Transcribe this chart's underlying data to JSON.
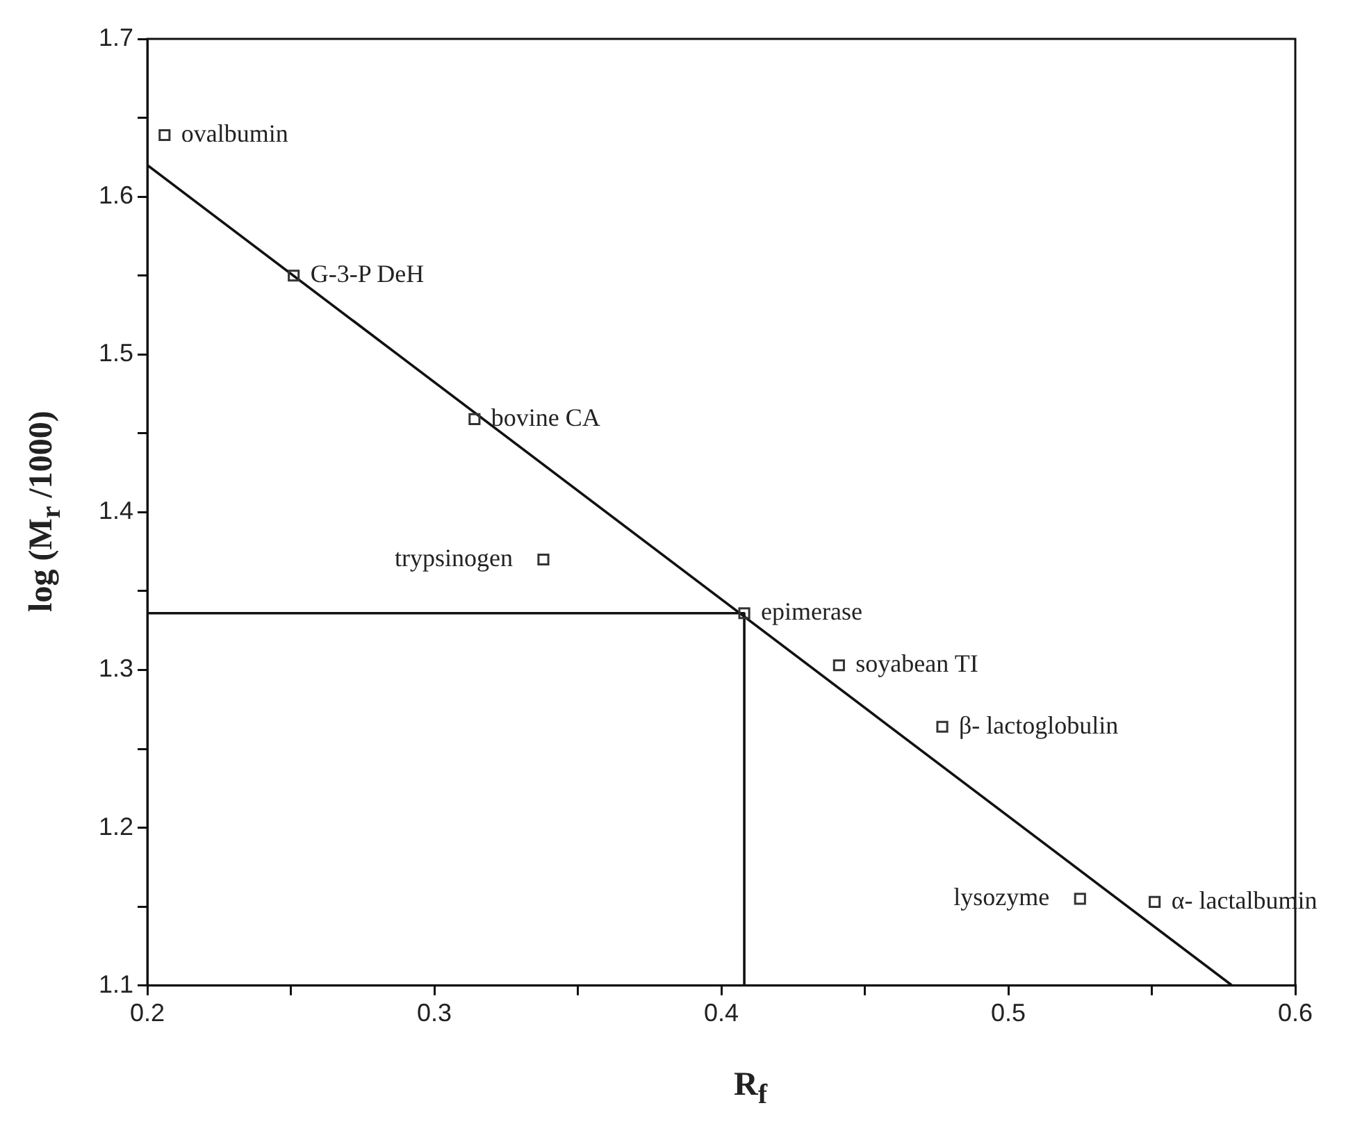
{
  "chart_data": {
    "type": "scatter",
    "xlabel": "R$_{f}$",
    "ylabel": "log (M$_{r}$ /1000)",
    "xlim": [
      0.2,
      0.6
    ],
    "ylim": [
      1.1,
      1.7
    ],
    "xticks": [
      0.2,
      {
        "value": 0.25,
        "label": null
      },
      0.3,
      {
        "value": 0.35,
        "label": null
      },
      0.4,
      {
        "value": 0.45,
        "label": null
      },
      0.5,
      {
        "value": 0.55,
        "label": null
      },
      0.6
    ],
    "yticks": [
      1.1,
      {
        "value": 1.15,
        "label": null
      },
      1.2,
      {
        "value": 1.25,
        "label": null
      },
      1.3,
      {
        "value": 1.35,
        "label": null
      },
      1.4,
      {
        "value": 1.45,
        "label": null
      },
      1.5,
      {
        "value": 1.55,
        "label": null
      },
      1.6,
      {
        "value": 1.65,
        "label": null
      },
      1.7
    ],
    "grid": false,
    "legend": false,
    "series": [
      {
        "marker": "square",
        "color": "#333333",
        "x": [
          0.206,
          0.251,
          0.314,
          0.338,
          0.408,
          0.441,
          0.477,
          0.525,
          0.551
        ],
        "values": [
          1.639,
          1.55,
          1.459,
          1.37,
          1.336,
          1.303,
          1.264,
          1.155,
          1.153
        ]
      },
      {
        "type": "line",
        "color": "#111111",
        "x": [
          0.2,
          0.578
        ],
        "values": [
          1.62,
          1.1
        ]
      },
      {
        "type": "line",
        "color": "#111111",
        "x": [
          0.2,
          0.408,
          0.408
        ],
        "values": [
          1.336,
          1.336,
          1.1
        ]
      }
    ],
    "annotations": [
      {
        "text": "ovalbumin",
        "x": 0.206,
        "y": 1.639
      },
      {
        "text": "G-3-P DeH",
        "x": 0.251,
        "y": 1.55
      },
      {
        "text": "bovine CA",
        "x": 0.314,
        "y": 1.459
      },
      {
        "text": "trypsinogen",
        "x": 0.338,
        "y": 1.37
      },
      {
        "text": "epimerase",
        "x": 0.408,
        "y": 1.336
      },
      {
        "text": "soyabean TI",
        "x": 0.441,
        "y": 1.303
      },
      {
        "text": "β- lactoglobulin",
        "x": 0.477,
        "y": 1.264
      },
      {
        "text": "lysozyme",
        "x": 0.525,
        "y": 1.155
      },
      {
        "text": "α- lactalbumin",
        "x": 0.551,
        "y": 1.153
      }
    ]
  }
}
